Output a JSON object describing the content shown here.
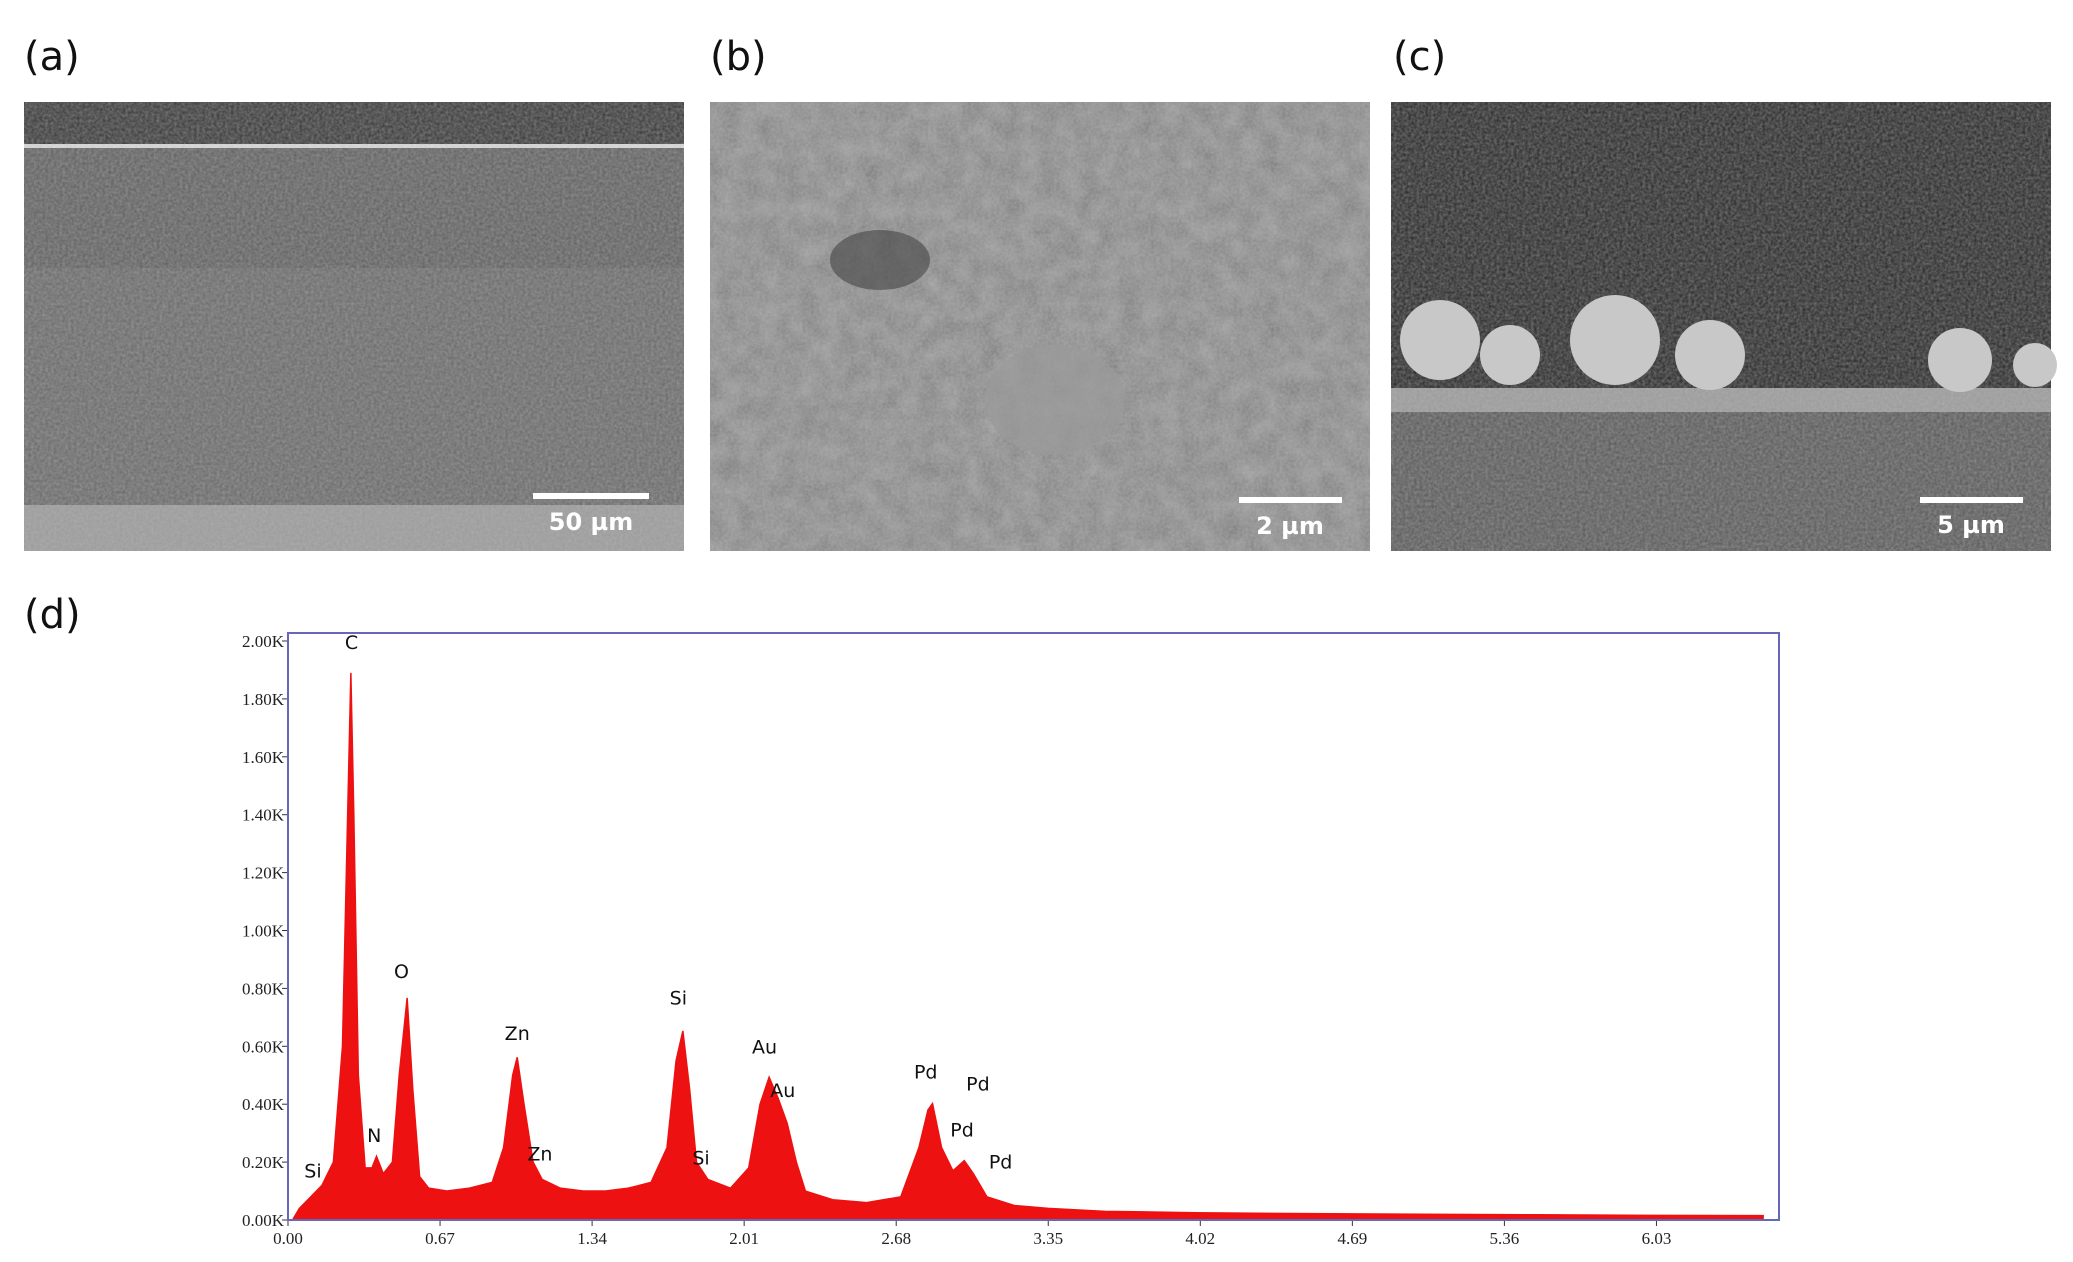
{
  "panels": {
    "a": {
      "label": "(a)",
      "scale_bar": "50 µm"
    },
    "b": {
      "label": "(b)",
      "scale_bar": "2 µm"
    },
    "c": {
      "label": "(c)",
      "scale_bar": "5 µm"
    },
    "d": {
      "label": "(d)"
    }
  },
  "chart_data": {
    "type": "area",
    "color": "#ee1111",
    "frame_color": "#6666bb",
    "x": [
      0.02,
      0.05,
      0.1,
      0.15,
      0.2,
      0.24,
      0.26,
      0.277,
      0.29,
      0.31,
      0.34,
      0.37,
      0.39,
      0.42,
      0.46,
      0.49,
      0.525,
      0.55,
      0.58,
      0.62,
      0.7,
      0.8,
      0.9,
      0.95,
      0.99,
      1.01,
      1.04,
      1.08,
      1.12,
      1.2,
      1.3,
      1.4,
      1.5,
      1.6,
      1.67,
      1.71,
      1.74,
      1.77,
      1.8,
      1.85,
      1.95,
      2.03,
      2.08,
      2.12,
      2.16,
      2.2,
      2.24,
      2.28,
      2.4,
      2.55,
      2.7,
      2.78,
      2.82,
      2.84,
      2.88,
      2.93,
      2.98,
      3.02,
      3.08,
      3.2,
      3.35,
      3.6,
      4.0,
      4.5,
      5.0,
      5.5,
      6.0,
      6.5
    ],
    "values": [
      0,
      40,
      80,
      120,
      200,
      600,
      1300,
      1890,
      1400,
      500,
      180,
      180,
      220,
      160,
      200,
      500,
      767,
      450,
      150,
      110,
      100,
      110,
      130,
      250,
      500,
      562,
      400,
      200,
      140,
      110,
      100,
      100,
      110,
      130,
      250,
      550,
      653,
      450,
      200,
      140,
      110,
      180,
      400,
      493,
      420,
      333,
      200,
      100,
      70,
      60,
      80,
      250,
      380,
      402,
      250,
      170,
      205,
      160,
      80,
      50,
      40,
      30,
      25,
      22,
      20,
      18,
      16,
      15
    ],
    "xlim": [
      0,
      6.57
    ],
    "ylim": [
      0,
      2000
    ],
    "xticks": [
      {
        "value": 0,
        "label": "0.00"
      },
      0.67,
      1.34,
      2.01,
      2.68,
      3.35,
      4.02,
      4.69,
      5.36,
      6.03
    ],
    "yticks": [
      {
        "value": 0,
        "label": "0.00K"
      },
      {
        "value": 200,
        "label": "0.20K"
      },
      {
        "value": 400,
        "label": "0.40K"
      },
      {
        "value": 600,
        "label": "0.60K"
      },
      {
        "value": 800,
        "label": "0.80K"
      },
      {
        "value": 1000,
        "label": "1.00K"
      },
      {
        "value": 1200,
        "label": "1.20K"
      },
      {
        "value": 1400,
        "label": "1.40K"
      },
      {
        "value": 1600,
        "label": "1.60K"
      },
      {
        "value": 1800,
        "label": "1.80K"
      },
      {
        "value": 2000,
        "label": "2.00K"
      }
    ],
    "annotations": [
      {
        "text": "Si",
        "x": 0.11,
        "y": 146
      },
      {
        "text": "C",
        "x": 0.28,
        "y": 1973
      },
      {
        "text": "N",
        "x": 0.38,
        "y": 269
      },
      {
        "text": "O",
        "x": 0.5,
        "y": 836
      },
      {
        "text": "Zn",
        "x": 1.01,
        "y": 621
      },
      {
        "text": "Zn",
        "x": 1.11,
        "y": 205
      },
      {
        "text": "Si",
        "x": 1.72,
        "y": 744
      },
      {
        "text": "Si",
        "x": 1.82,
        "y": 192
      },
      {
        "text": "Au",
        "x": 2.1,
        "y": 575
      },
      {
        "text": "Au",
        "x": 2.18,
        "y": 425
      },
      {
        "text": "Pd",
        "x": 2.81,
        "y": 489
      },
      {
        "text": "Pd",
        "x": 3.04,
        "y": 447
      },
      {
        "text": "Pd",
        "x": 2.97,
        "y": 288
      },
      {
        "text": "Pd",
        "x": 3.14,
        "y": 178
      }
    ]
  }
}
